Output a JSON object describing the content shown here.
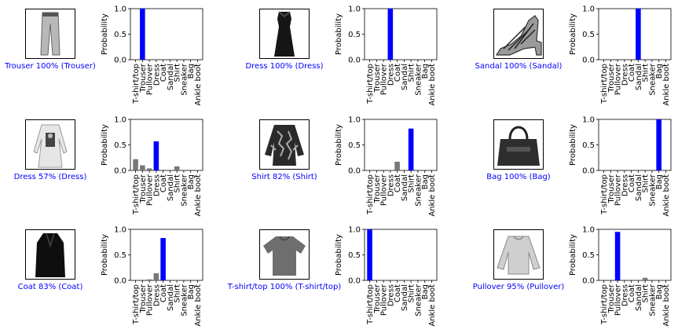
{
  "chart_data": {
    "type": "bar",
    "categories": [
      "T-shirt/top",
      "Trouser",
      "Pullover",
      "Dress",
      "Coat",
      "Sandal",
      "Shirt",
      "Sneaker",
      "Bag",
      "Ankle boot"
    ],
    "ylabel": "Probability",
    "ylim": [
      0,
      1
    ],
    "yticks": [
      "0.0",
      "0.5",
      "1.0"
    ],
    "colors": {
      "predicted": "#0000ff",
      "other": "#777777",
      "caption_correct": "#0000ff"
    },
    "panels": [
      {
        "caption": "Trouser 100% (Trouser)",
        "image_icon": "trouser-icon",
        "predicted_index": 1,
        "values": [
          0,
          1.0,
          0,
          0,
          0,
          0,
          0,
          0,
          0,
          0
        ]
      },
      {
        "caption": "Dress 100% (Dress)",
        "image_icon": "dress-icon",
        "predicted_index": 3,
        "values": [
          0,
          0,
          0,
          1.0,
          0,
          0,
          0,
          0,
          0,
          0
        ]
      },
      {
        "caption": "Sandal 100% (Sandal)",
        "image_icon": "sandal-icon",
        "predicted_index": 5,
        "values": [
          0,
          0,
          0,
          0,
          0,
          1.0,
          0,
          0,
          0,
          0
        ]
      },
      {
        "caption": "Dress 57% (Dress)",
        "image_icon": "long-sleeve-dress-icon",
        "predicted_index": 3,
        "values": [
          0.22,
          0.1,
          0.04,
          0.57,
          0,
          0,
          0.08,
          0,
          0,
          0
        ]
      },
      {
        "caption": "Shirt 82% (Shirt)",
        "image_icon": "shirt-icon",
        "predicted_index": 6,
        "values": [
          0,
          0,
          0,
          0.01,
          0.17,
          0,
          0.82,
          0,
          0,
          0
        ]
      },
      {
        "caption": "Bag 100% (Bag)",
        "image_icon": "bag-icon",
        "predicted_index": 8,
        "values": [
          0,
          0,
          0,
          0,
          0,
          0,
          0,
          0,
          1.0,
          0
        ]
      },
      {
        "caption": "Coat 83% (Coat)",
        "image_icon": "coat-icon",
        "predicted_index": 4,
        "values": [
          0,
          0,
          0.02,
          0.14,
          0.83,
          0,
          0.01,
          0,
          0,
          0
        ]
      },
      {
        "caption": "T-shirt/top 100% (T-shirt/top)",
        "image_icon": "tshirt-icon",
        "predicted_index": 0,
        "values": [
          1.0,
          0,
          0,
          0,
          0,
          0,
          0.01,
          0,
          0,
          0
        ]
      },
      {
        "caption": "Pullover 95% (Pullover)",
        "image_icon": "pullover-icon",
        "predicted_index": 2,
        "values": [
          0,
          0,
          0.95,
          0,
          0,
          0,
          0.05,
          0,
          0,
          0
        ]
      }
    ]
  }
}
